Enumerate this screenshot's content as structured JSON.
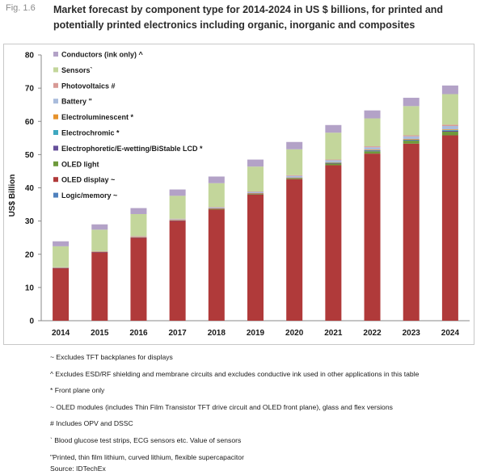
{
  "figure_label": "Fig. 1.6",
  "title": "Market forecast by component type for 2014-2024 in US $ billions, for printed and potentially printed electronics including organic, inorganic and composites",
  "footnotes": [
    "~ Excludes TFT backplanes for displays",
    "^ Excludes ESD/RF shielding and membrane circuits and excludes conductive ink used in other applications in this table",
    "* Front plane only",
    "~ OLED modules (includes Thin Film Transistor TFT drive circuit and OLED front plane), glass and flex versions",
    "# Includes OPV and DSSC",
    "` Blood glucose test strips, ECG sensors etc. Value of sensors",
    "\"Printed, thin film lithium, curved lithium, flexible supercapacitor"
  ],
  "source": "Source: IDTechEx",
  "chart_data": {
    "type": "bar",
    "stacked": true,
    "categories": [
      "2014",
      "2015",
      "2016",
      "2017",
      "2018",
      "2019",
      "2020",
      "2021",
      "2022",
      "2023",
      "2024"
    ],
    "ylabel": "US$ Billion",
    "xlabel": "",
    "ylim": [
      0,
      80
    ],
    "yticks": [
      0,
      10,
      20,
      30,
      40,
      50,
      60,
      70,
      80
    ],
    "grid": false,
    "legend_position": "top-left",
    "series": [
      {
        "name": "Logic/memory ~",
        "color": "#4f81bd",
        "values": [
          0,
          0,
          0,
          0,
          0,
          0,
          0,
          0,
          0,
          0,
          0
        ]
      },
      {
        "name": "OLED display ~",
        "color": "#b03a3a",
        "values": [
          15.8,
          20.6,
          25.0,
          30.1,
          33.5,
          38.0,
          42.6,
          46.8,
          50.3,
          53.3,
          55.8
        ]
      },
      {
        "name": "OLED light",
        "color": "#6e9a3c",
        "values": [
          0,
          0,
          0,
          0,
          0.1,
          0.2,
          0.3,
          0.5,
          0.7,
          0.9,
          1.1
        ]
      },
      {
        "name": "Electrophoretic/E-wetting/BiStable LCD *",
        "color": "#66509a",
        "values": [
          0.1,
          0.1,
          0.1,
          0.1,
          0.1,
          0.1,
          0.1,
          0.2,
          0.2,
          0.2,
          0.3
        ]
      },
      {
        "name": "Electrochromic *",
        "color": "#3fa8c0",
        "values": [
          0,
          0,
          0,
          0,
          0,
          0,
          0,
          0.1,
          0.1,
          0.1,
          0.2
        ]
      },
      {
        "name": "Electroluminescent *",
        "color": "#e6922c",
        "values": [
          0.1,
          0.1,
          0.1,
          0.1,
          0.1,
          0.1,
          0.1,
          0.1,
          0.2,
          0.2,
          0.2
        ]
      },
      {
        "name": "Battery \"",
        "color": "#a9bcdc",
        "values": [
          0.1,
          0.2,
          0.2,
          0.3,
          0.3,
          0.4,
          0.5,
          0.6,
          0.7,
          0.8,
          1.0
        ]
      },
      {
        "name": "Photovoltaics #",
        "color": "#d89a96",
        "values": [
          0,
          0,
          0.1,
          0.1,
          0.1,
          0.1,
          0.2,
          0.2,
          0.3,
          0.3,
          0.4
        ]
      },
      {
        "name": "Sensors`",
        "color": "#c3d69b",
        "values": [
          6.3,
          6.4,
          6.6,
          6.9,
          7.2,
          7.5,
          7.8,
          8.1,
          8.4,
          8.8,
          9.2
        ]
      },
      {
        "name": "Conductors (ink only) ^",
        "color": "#b3a2c7",
        "values": [
          1.5,
          1.6,
          1.8,
          1.9,
          2.0,
          2.1,
          2.2,
          2.3,
          2.4,
          2.5,
          2.6
        ]
      }
    ]
  }
}
